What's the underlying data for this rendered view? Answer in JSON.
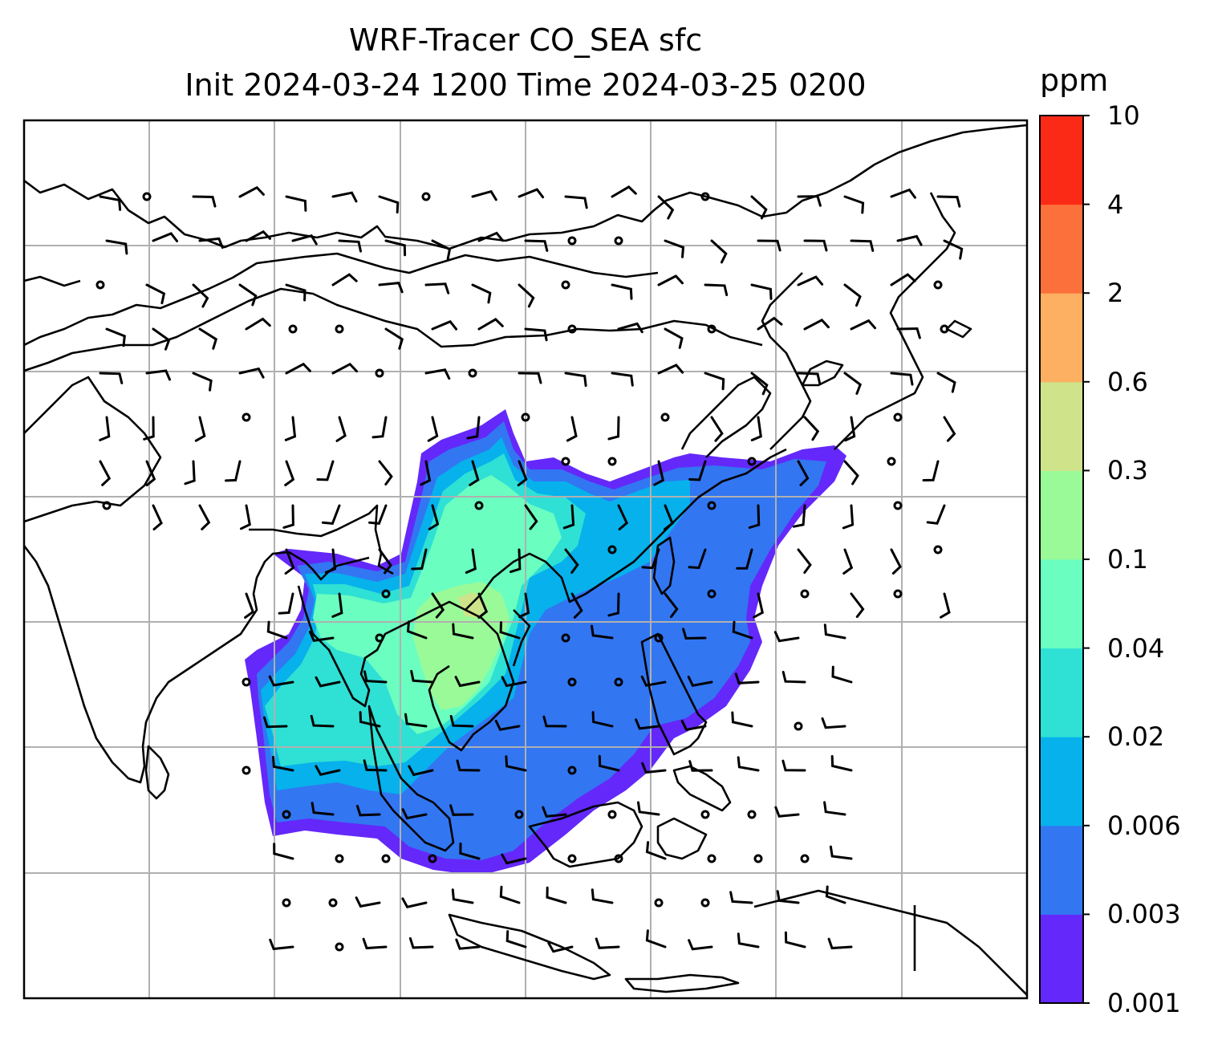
{
  "title": {
    "line1": "WRF-Tracer CO_SEA sfc",
    "line2": "Init 2024-03-24 1200 Time 2024-03-25 0200"
  },
  "colorbar": {
    "unit": "ppm",
    "levels": [
      "0.001",
      "0.003",
      "0.006",
      "0.02",
      "0.04",
      "0.1",
      "0.3",
      "0.6",
      "2",
      "4",
      "10"
    ],
    "colors": [
      "#6428fa",
      "#3276f2",
      "#06b1ec",
      "#2fe0d4",
      "#6affc0",
      "#9afa98",
      "#cfe38a",
      "#fdaf62",
      "#fc703c",
      "#fb2a16"
    ]
  },
  "map": {
    "gridlines": "on",
    "coastline_color": "#000000",
    "gridline_color": "#b0b0b0",
    "field_name": "CO_SEA surface tracer concentration",
    "wind_barbs": "shown"
  }
}
